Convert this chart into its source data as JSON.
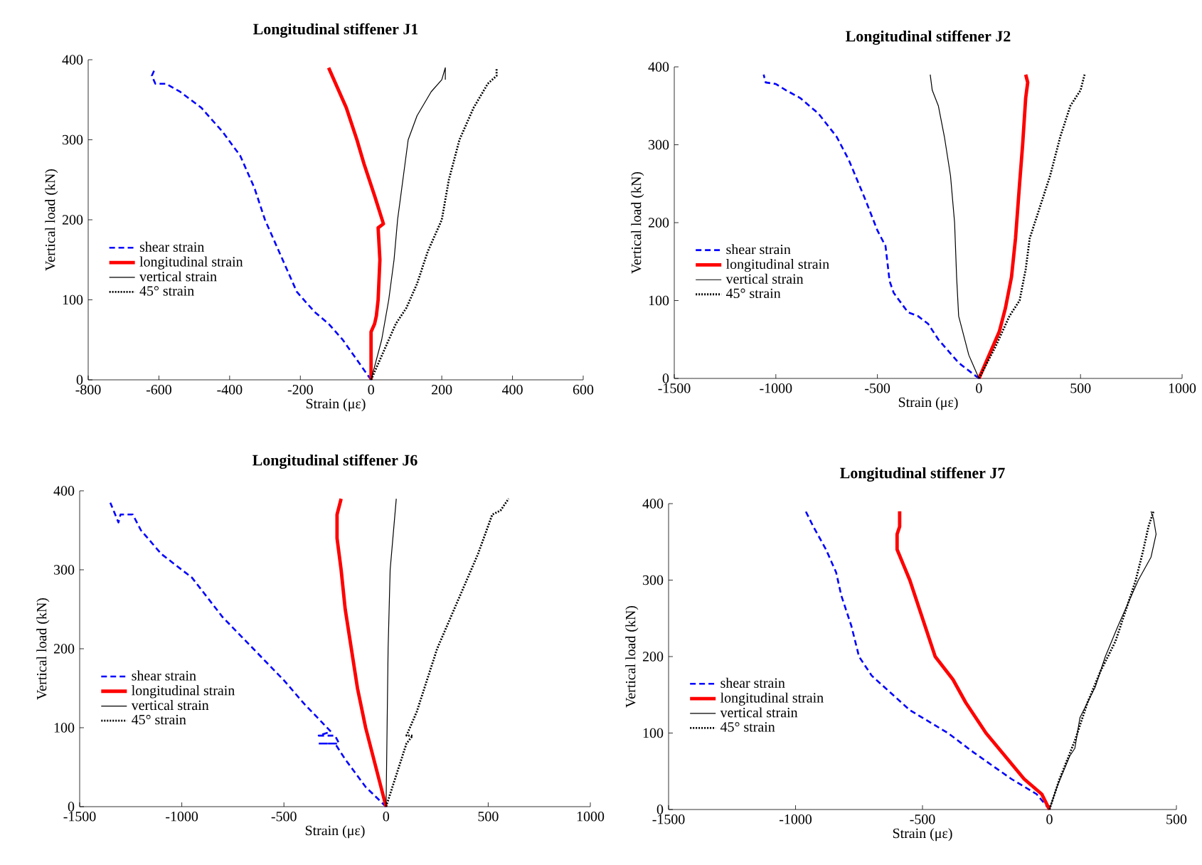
{
  "chart_data": [
    {
      "type": "line",
      "title": "Longitudinal stiffener J1",
      "xlabel": "Strain (με)",
      "ylabel": "Vertical load (kN)",
      "xlim": [
        -800,
        600
      ],
      "xticks": [
        -800,
        -600,
        -400,
        -200,
        0,
        200,
        400,
        600
      ],
      "ylim": [
        0,
        400
      ],
      "yticks": [
        0,
        100,
        200,
        300,
        400
      ],
      "legend": "left",
      "series": [
        {
          "name": "shear strain",
          "color": "#0000ff",
          "line_style": "dashed",
          "x": [
            0,
            -40,
            -80,
            -120,
            -160,
            -210,
            -240,
            -270,
            -300,
            -330,
            -370,
            -420,
            -480,
            -540,
            -580,
            -610,
            -620,
            -610
          ],
          "values": [
            0,
            25,
            50,
            70,
            85,
            110,
            140,
            170,
            200,
            240,
            280,
            310,
            340,
            360,
            370,
            370,
            380,
            390
          ]
        },
        {
          "name": "longitudinal strain",
          "color": "#ff0000",
          "line_style": "solid",
          "x": [
            0,
            0,
            10,
            15,
            20,
            25,
            20,
            35,
            10,
            -20,
            -40,
            -70,
            -100,
            -110,
            -120
          ],
          "values": [
            0,
            60,
            70,
            80,
            100,
            150,
            190,
            195,
            230,
            270,
            300,
            340,
            370,
            380,
            390
          ]
        },
        {
          "name": "vertical strain",
          "color": "#000000",
          "line_style": "solid",
          "x": [
            0,
            30,
            50,
            65,
            75,
            90,
            105,
            130,
            170,
            200,
            210,
            210
          ],
          "values": [
            0,
            50,
            100,
            150,
            200,
            250,
            300,
            330,
            360,
            375,
            390,
            375
          ]
        },
        {
          "name": "45° strain",
          "color": "#000000",
          "line_style": "dotted",
          "x": [
            0,
            40,
            70,
            100,
            130,
            160,
            200,
            220,
            250,
            290,
            330,
            355,
            355
          ],
          "values": [
            0,
            40,
            70,
            90,
            120,
            160,
            200,
            250,
            300,
            340,
            370,
            380,
            390
          ]
        }
      ]
    },
    {
      "type": "line",
      "title": "Longitudinal stiffener J2",
      "xlabel": "Strain (με)",
      "ylabel": "Vertical load (kN)",
      "xlim": [
        -1500,
        1000
      ],
      "xticks": [
        -1500,
        -1000,
        -500,
        0,
        500,
        1000
      ],
      "ylim": [
        0,
        400
      ],
      "yticks": [
        0,
        100,
        200,
        300,
        400
      ],
      "legend": "left",
      "series": [
        {
          "name": "shear strain",
          "color": "#0000ff",
          "line_style": "dashed",
          "x": [
            0,
            -100,
            -200,
            -250,
            -300,
            -350,
            -420,
            -440,
            -460,
            -500,
            -560,
            -640,
            -700,
            -790,
            -880,
            -950,
            -1000,
            -1050,
            -1060
          ],
          "values": [
            0,
            20,
            50,
            70,
            80,
            85,
            110,
            125,
            170,
            190,
            230,
            280,
            310,
            340,
            360,
            370,
            378,
            380,
            390
          ]
        },
        {
          "name": "longitudinal strain",
          "color": "#ff0000",
          "line_style": "solid",
          "x": [
            0,
            50,
            100,
            130,
            160,
            180,
            200,
            215,
            230,
            240,
            230
          ],
          "values": [
            0,
            30,
            60,
            90,
            130,
            180,
            250,
            300,
            360,
            380,
            390
          ]
        },
        {
          "name": "vertical strain",
          "color": "#000000",
          "line_style": "solid",
          "x": [
            0,
            -50,
            -100,
            -110,
            -120,
            -140,
            -170,
            -200,
            -230,
            -240
          ],
          "values": [
            0,
            30,
            80,
            130,
            200,
            260,
            310,
            350,
            370,
            390
          ]
        },
        {
          "name": "45° strain",
          "color": "#000000",
          "line_style": "dotted",
          "x": [
            0,
            80,
            150,
            200,
            230,
            250,
            300,
            350,
            400,
            450,
            500,
            520
          ],
          "values": [
            0,
            40,
            80,
            100,
            140,
            180,
            220,
            260,
            310,
            350,
            370,
            390
          ]
        }
      ]
    },
    {
      "type": "line",
      "title": "Longitudinal stiffener J6",
      "xlabel": "Strain (με)",
      "ylabel": "Vertical load (kN)",
      "xlim": [
        -1500,
        1000
      ],
      "xticks": [
        -1500,
        -1000,
        -500,
        0,
        500,
        1000
      ],
      "ylim": [
        0,
        400
      ],
      "yticks": [
        0,
        100,
        200,
        300,
        400
      ],
      "legend": "left",
      "series": [
        {
          "name": "shear strain",
          "color": "#0000ff",
          "line_style": "dashed",
          "x": [
            0,
            -100,
            -200,
            -250,
            -330,
            -230,
            -250,
            -330,
            -270,
            -400,
            -500,
            -650,
            -800,
            -950,
            -1100,
            -1200,
            -1240,
            -1300,
            -1310,
            -1350
          ],
          "values": [
            0,
            25,
            60,
            80,
            80,
            80,
            90,
            90,
            95,
            130,
            160,
            200,
            240,
            290,
            320,
            350,
            370,
            370,
            360,
            385
          ]
        },
        {
          "name": "longitudinal strain",
          "color": "#ff0000",
          "line_style": "solid",
          "x": [
            0,
            -50,
            -100,
            -140,
            -170,
            -200,
            -220,
            -240,
            -240,
            -220
          ],
          "values": [
            0,
            50,
            100,
            150,
            200,
            250,
            300,
            340,
            370,
            390
          ]
        },
        {
          "name": "vertical strain",
          "color": "#000000",
          "line_style": "solid",
          "x": [
            0,
            5,
            10,
            20,
            50
          ],
          "values": [
            0,
            100,
            200,
            300,
            390
          ]
        },
        {
          "name": "45° strain",
          "color": "#000000",
          "line_style": "dotted",
          "x": [
            0,
            50,
            100,
            130,
            100,
            150,
            200,
            250,
            350,
            450,
            520,
            560,
            600
          ],
          "values": [
            0,
            40,
            80,
            90,
            90,
            120,
            160,
            200,
            260,
            320,
            370,
            375,
            390
          ]
        }
      ]
    },
    {
      "type": "line",
      "title": "Longitudinal stiffener J7",
      "xlabel": "Strain (με)",
      "ylabel": "Vertical load (kN)",
      "xlim": [
        -1500,
        500
      ],
      "xticks": [
        -1500,
        -1000,
        -500,
        0,
        500
      ],
      "ylim": [
        0,
        400
      ],
      "yticks": [
        0,
        100,
        200,
        300,
        400
      ],
      "legend": "left",
      "series": [
        {
          "name": "shear strain",
          "color": "#0000ff",
          "line_style": "dashed",
          "x": [
            0,
            -50,
            -150,
            -300,
            -400,
            -550,
            -650,
            -700,
            -750,
            -780,
            -820,
            -840,
            -880,
            -930,
            -960
          ],
          "values": [
            0,
            20,
            40,
            75,
            100,
            130,
            160,
            175,
            200,
            240,
            280,
            310,
            340,
            370,
            390
          ]
        },
        {
          "name": "longitudinal strain",
          "color": "#ff0000",
          "line_style": "solid",
          "x": [
            0,
            -30,
            -100,
            -200,
            -250,
            -330,
            -380,
            -450,
            -500,
            -550,
            -600,
            -600,
            -590,
            -590
          ],
          "values": [
            0,
            20,
            40,
            80,
            100,
            140,
            170,
            200,
            250,
            300,
            340,
            360,
            370,
            390
          ]
        },
        {
          "name": "vertical strain",
          "color": "#000000",
          "line_style": "solid",
          "x": [
            0,
            30,
            80,
            100,
            120,
            180,
            220,
            270,
            310,
            350,
            400,
            420,
            410,
            400
          ],
          "values": [
            0,
            30,
            70,
            80,
            120,
            160,
            200,
            240,
            270,
            300,
            330,
            360,
            380,
            390
          ]
        },
        {
          "name": "45° strain",
          "color": "#000000",
          "line_style": "dotted",
          "x": [
            0,
            40,
            100,
            150,
            200,
            260,
            300,
            340,
            370,
            390,
            410
          ],
          "values": [
            0,
            40,
            90,
            140,
            180,
            220,
            260,
            300,
            340,
            370,
            390
          ]
        }
      ]
    }
  ]
}
